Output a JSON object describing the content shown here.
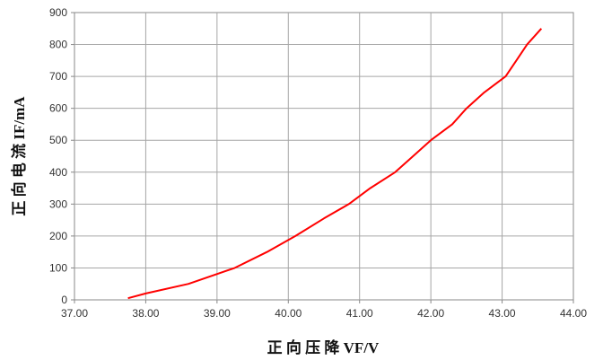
{
  "chart_data": {
    "type": "line",
    "title": "",
    "xlabel": "正 向 压 降 VF/V",
    "ylabel": "正 向 电 流 IF/mA",
    "xlim": [
      37.0,
      44.0
    ],
    "ylim": [
      0,
      900
    ],
    "x_ticks": [
      "37.00",
      "38.00",
      "39.00",
      "40.00",
      "41.00",
      "42.00",
      "43.00",
      "44.00"
    ],
    "y_ticks": [
      "0",
      "100",
      "200",
      "300",
      "400",
      "500",
      "600",
      "700",
      "800",
      "900"
    ],
    "grid": true,
    "series": [
      {
        "color": "#ff0000",
        "x": [
          37.75,
          38.0,
          38.6,
          39.25,
          39.7,
          40.1,
          40.5,
          40.85,
          41.15,
          41.5,
          41.75,
          42.0,
          42.3,
          42.5,
          42.75,
          43.05,
          43.2,
          43.35,
          43.55
        ],
        "y": [
          5,
          20,
          50,
          100,
          150,
          200,
          255,
          300,
          350,
          400,
          450,
          500,
          550,
          600,
          650,
          700,
          750,
          800,
          850
        ]
      }
    ]
  }
}
